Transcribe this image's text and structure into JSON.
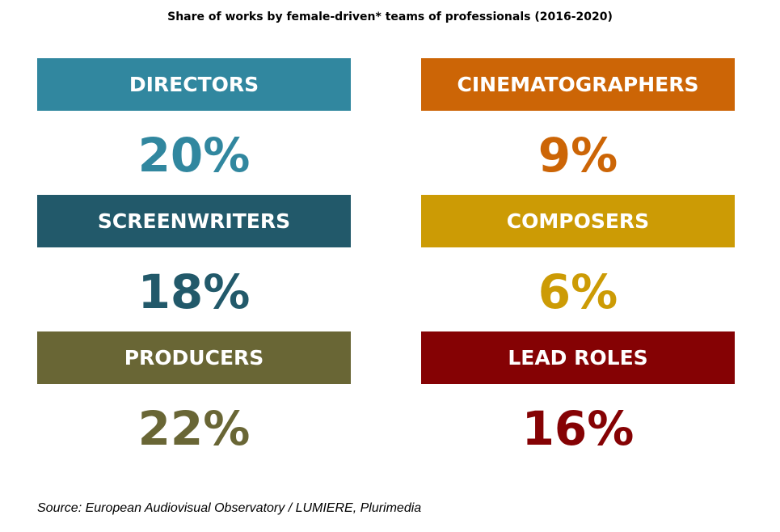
{
  "chart_data": {
    "type": "table",
    "title": "Share of works by female-driven* teams of professionals (2016-2020)",
    "categories": [
      "DIRECTORS",
      "CINEMATOGRAPHERS",
      "SCREENWRITERS",
      "COMPOSERS",
      "PRODUCERS",
      "LEAD ROLES"
    ],
    "values": [
      20,
      9,
      18,
      6,
      22,
      16
    ],
    "unit": "%",
    "items": [
      {
        "label": "DIRECTORS",
        "value": 20,
        "display": "20%",
        "color": "#31879f"
      },
      {
        "label": "CINEMATOGRAPHERS",
        "value": 9,
        "display": "9%",
        "color": "#cc6506"
      },
      {
        "label": "SCREENWRITERS",
        "value": 18,
        "display": "18%",
        "color": "#22596a"
      },
      {
        "label": "COMPOSERS",
        "value": 6,
        "display": "6%",
        "color": "#cc9b05"
      },
      {
        "label": "PRODUCERS",
        "value": 22,
        "display": "22%",
        "color": "#696635"
      },
      {
        "label": "LEAD ROLES",
        "value": 16,
        "display": "16%",
        "color": "#850204"
      }
    ]
  },
  "source": "Source: European Audiovisual Observatory / LUMIERE, Plurimedia"
}
